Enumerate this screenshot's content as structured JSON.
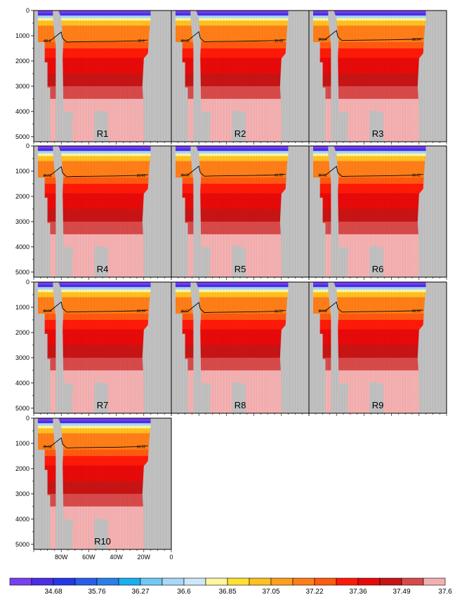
{
  "chart_data": {
    "type": "heatmap",
    "title": "",
    "xlabel": "",
    "ylabel": "",
    "x_ticks": [
      "80W",
      "60W",
      "40W",
      "20W",
      "0"
    ],
    "x_tick_values": [
      80,
      60,
      40,
      20,
      0
    ],
    "xlim": [
      100,
      0
    ],
    "y_ticks": [
      0,
      1000,
      2000,
      3000,
      4000,
      5000
    ],
    "ylim": [
      5200,
      0
    ],
    "depth_levels": [
      0,
      100,
      200,
      300,
      400,
      500,
      600,
      700,
      800,
      900,
      1000,
      1250,
      1500,
      1875,
      2500,
      3000,
      3500,
      4000,
      4500,
      5000,
      5200
    ],
    "layer_values": [
      34.5,
      34.68,
      35.76,
      36.0,
      36.27,
      36.27,
      36.6,
      36.6,
      36.6,
      36.6,
      36.6,
      36.85,
      37.05,
      37.22,
      37.36,
      37.49,
      37.6,
      37.6,
      37.6,
      37.6
    ],
    "colorbar": {
      "labels": [
        "34.68",
        "35.76",
        "36.27",
        "36.6",
        "36.85",
        "37.05",
        "37.22",
        "37.36",
        "37.49",
        "37.6"
      ],
      "colors": [
        "#7a3ff0",
        "#4a2ee8",
        "#2438e8",
        "#2a5ee8",
        "#2a80ea",
        "#18b0f0",
        "#70c8f4",
        "#a8d8f6",
        "#cce8f8",
        "#fff5a0",
        "#ffe033",
        "#ffc020",
        "#ffa01a",
        "#ff7e18",
        "#ff5a10",
        "#ff1a08",
        "#e80a0a",
        "#c81414",
        "#d84a4a",
        "#f4b0b0"
      ]
    },
    "panels": [
      {
        "label": "R1",
        "contour_value": "36.6",
        "contour_depth": 1200
      },
      {
        "label": "R2",
        "contour_value": "36.65",
        "contour_depth": 1190
      },
      {
        "label": "R3",
        "contour_value": "36.54",
        "contour_depth": 1140
      },
      {
        "label": "R4",
        "contour_value": "36.61",
        "contour_depth": 1170
      },
      {
        "label": "R5",
        "contour_value": "36.55",
        "contour_depth": 1150
      },
      {
        "label": "R6",
        "contour_value": "36.61",
        "contour_depth": 1160
      },
      {
        "label": "R7",
        "contour_value": "36.54",
        "contour_depth": 1140
      },
      {
        "label": "R8",
        "contour_value": "36.57",
        "contour_depth": 1160
      },
      {
        "label": "R9",
        "contour_value": "36.53",
        "contour_depth": 1140
      },
      {
        "label": "R10",
        "contour_value": "36.52",
        "contour_depth": 1130
      }
    ],
    "land_color": "#c0c0c0"
  }
}
